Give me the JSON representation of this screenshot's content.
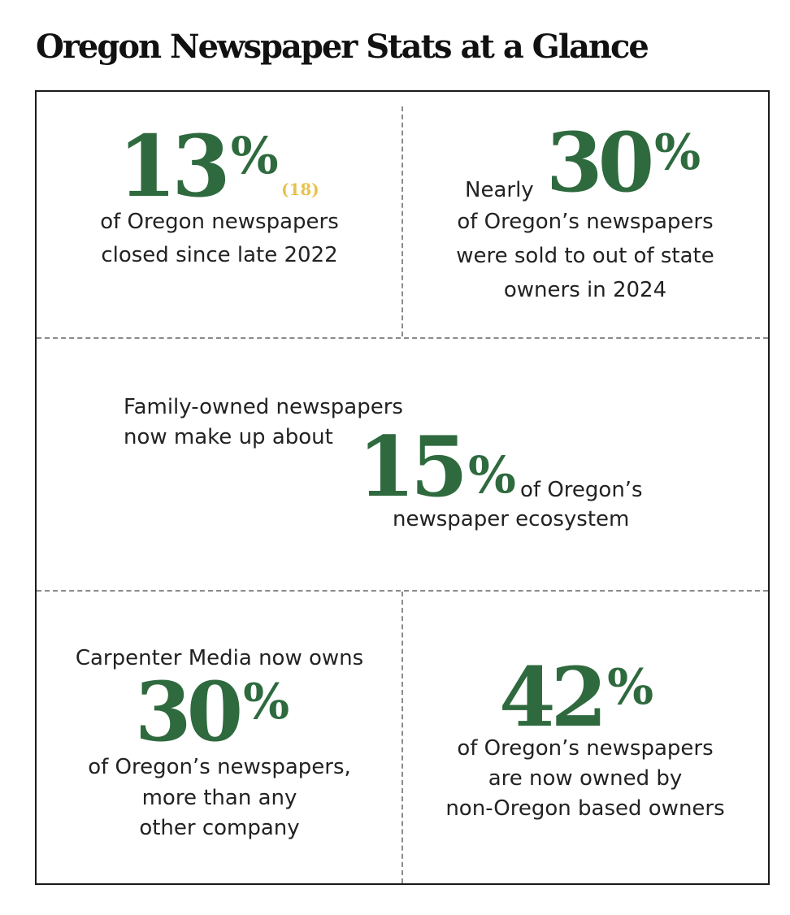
{
  "title": "Oregon Newspaper Stats at a Glance",
  "colors": {
    "accent_green": "#2e6a3e",
    "note_yellow": "#e9c24f",
    "text": "#222222"
  },
  "stats": {
    "closed": {
      "value": "13",
      "unit": "%",
      "note": "(18)",
      "line1": "of Oregon newspapers",
      "line2": "closed since late 2022"
    },
    "sold": {
      "prefix": "Nearly",
      "value": "30",
      "unit": "%",
      "line1": "of Oregon’s newspapers",
      "line2": "were sold to out of state",
      "line3": "owners in 2024"
    },
    "family": {
      "intro1": "Family-owned newspapers",
      "intro2": "now make up about",
      "value": "15",
      "unit": "%",
      "suffix": "of Oregon’s",
      "line_last": "newspaper ecosystem"
    },
    "carpenter": {
      "intro": "Carpenter Media now owns",
      "value": "30",
      "unit": "%",
      "line1": "of Oregon’s newspapers,",
      "line2": "more than any",
      "line3": "other company"
    },
    "non_oregon": {
      "value": "42",
      "unit": "%",
      "line1": "of Oregon’s newspapers",
      "line2": "are now owned by",
      "line3": "non-Oregon based owners"
    }
  }
}
